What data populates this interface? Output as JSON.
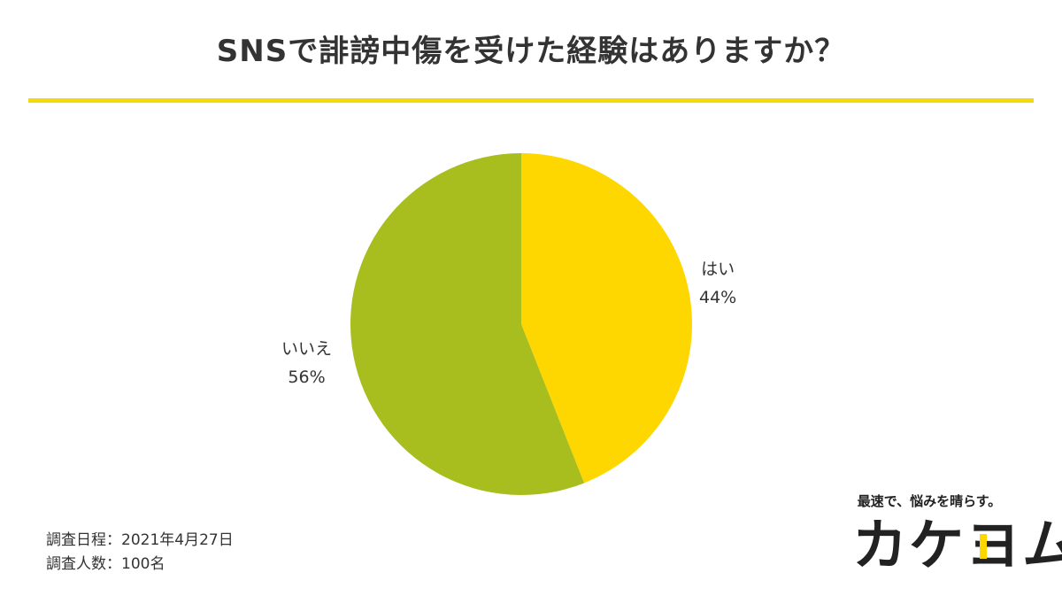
{
  "title": "SNSで誹謗中傷を受けた経験はありますか？",
  "colors": {
    "accent_line": "#F5D90A",
    "yes": "#FFD700",
    "no": "#A8BD1E",
    "text": "#333333"
  },
  "chart_data": {
    "type": "pie",
    "title": "SNSで誹謗中傷を受けた経験はありますか？",
    "slices": [
      {
        "label": "はい",
        "value": 44,
        "value_label": "44%",
        "color": "#FFD700"
      },
      {
        "label": "いいえ",
        "value": 56,
        "value_label": "56%",
        "color": "#A8BD1E"
      }
    ],
    "start": "12 o'clock",
    "direction": "clockwise"
  },
  "meta": {
    "survey_date": "調査日程：2021年4月27日",
    "respondents": "調査人数：100名"
  },
  "brand": {
    "tagline": "最速で、悩みを晴らす。",
    "logo_text": "カケヨム",
    "logo_accent_color": "#FFD700"
  }
}
